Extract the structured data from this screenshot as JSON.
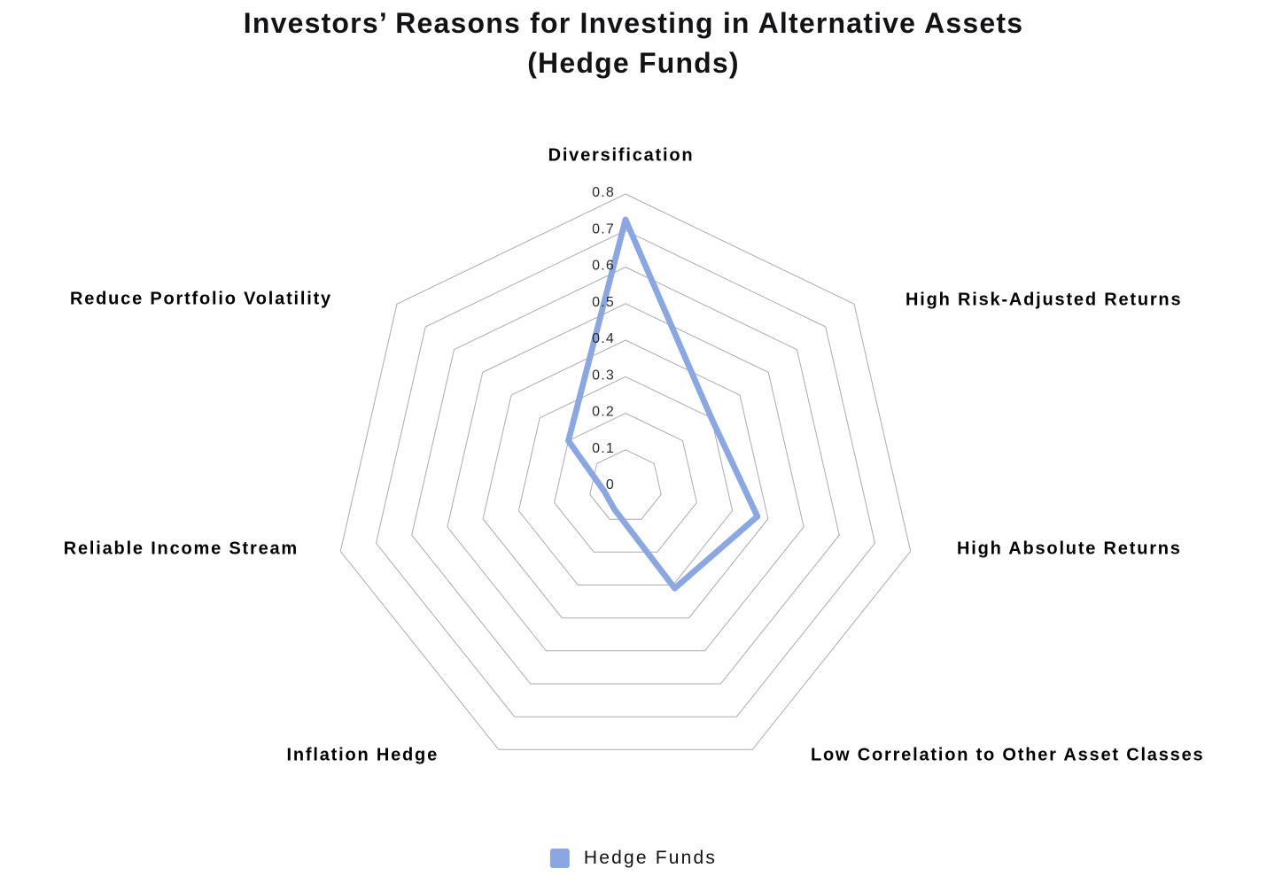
{
  "title": {
    "line1": "Investors’ Reasons for Investing in Alternative Assets",
    "line2": "(Hedge Funds)"
  },
  "legend": {
    "items": [
      {
        "label": "Hedge Funds",
        "swatch_color": "#8BA7E1"
      }
    ]
  },
  "colors": {
    "series_blue": "#8BA7E1",
    "grid_gray": "#ababab",
    "text_black": "#000000"
  },
  "chart_data": {
    "type": "radar",
    "title": "Investors’ Reasons for Investing in Alternative Assets (Hedge Funds)",
    "categories": [
      "Diversification",
      "High Risk-Adjusted Returns",
      "High Absolute Returns",
      "Low Correlation to Other Asset Classes",
      "Inflation Hedge",
      "Reliable Income Stream",
      "Reduce Portfolio Volatility"
    ],
    "series": [
      {
        "name": "Hedge Funds",
        "color": "#8BA7E1",
        "values": [
          0.73,
          0.3,
          0.37,
          0.31,
          0.07,
          0.06,
          0.2
        ]
      }
    ],
    "radial_axis": {
      "min": 0,
      "max": 0.8,
      "tick_step": 0.1,
      "tick_labels": [
        "0",
        "0.1",
        "0.2",
        "0.3",
        "0.4",
        "0.5",
        "0.6",
        "0.7",
        "0.8"
      ]
    },
    "layout": {
      "web_shape": "heptagon",
      "rings": 8,
      "radial_spokes": false,
      "series_fill": false,
      "start_angle_deg": 90,
      "direction": "clockwise",
      "legend_position": "bottom-center",
      "background": "#ffffff"
    }
  }
}
